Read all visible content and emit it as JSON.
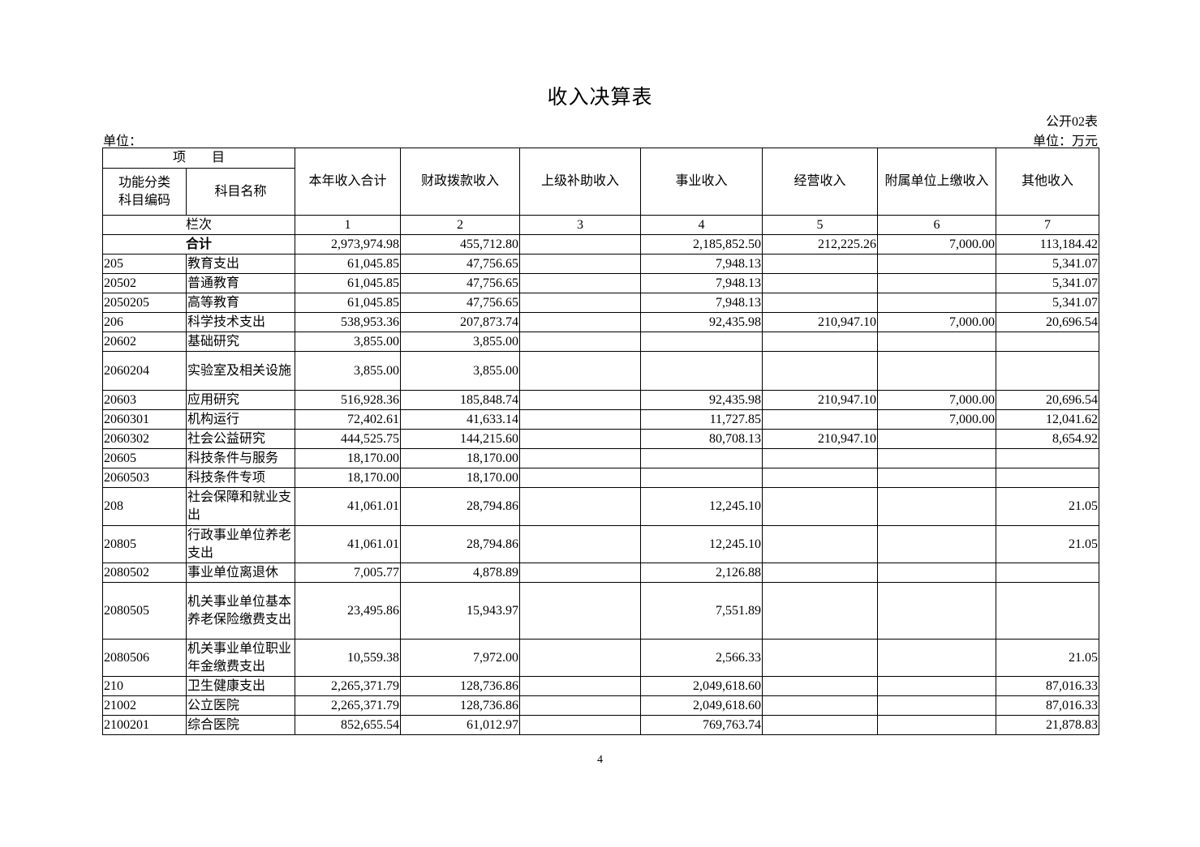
{
  "title": "收入决算表",
  "table_no": "公开02表",
  "unit_left": "单位：",
  "unit_right": "单位：万元",
  "header": {
    "item": "项　　目",
    "code": "功能分类科目编码",
    "name": "科目名称",
    "columns": [
      "本年收入合计",
      "财政拨款收入",
      "上级补助收入",
      "事业收入",
      "经营收入",
      "附属单位上缴收入",
      "其他收入"
    ],
    "row_index_label": "栏次",
    "row_index": [
      "1",
      "2",
      "3",
      "4",
      "5",
      "6",
      "7"
    ]
  },
  "total": {
    "label": "合计",
    "values": [
      "2,973,974.98",
      "455,712.80",
      "",
      "2,185,852.50",
      "212,225.26",
      "7,000.00",
      "113,184.42"
    ]
  },
  "rows": [
    {
      "code": "205",
      "name": "教育支出",
      "values": [
        "61,045.85",
        "47,756.65",
        "",
        "7,948.13",
        "",
        "",
        "5,341.07"
      ]
    },
    {
      "code": "20502",
      "name": "普通教育",
      "values": [
        "61,045.85",
        "47,756.65",
        "",
        "7,948.13",
        "",
        "",
        "5,341.07"
      ]
    },
    {
      "code": "2050205",
      "name": "高等教育",
      "values": [
        "61,045.85",
        "47,756.65",
        "",
        "7,948.13",
        "",
        "",
        "5,341.07"
      ]
    },
    {
      "code": "206",
      "name": "科学技术支出",
      "values": [
        "538,953.36",
        "207,873.74",
        "",
        "92,435.98",
        "210,947.10",
        "7,000.00",
        "20,696.54"
      ]
    },
    {
      "code": "20602",
      "name": "基础研究",
      "values": [
        "3,855.00",
        "3,855.00",
        "",
        "",
        "",
        "",
        ""
      ]
    },
    {
      "code": "2060204",
      "name": "实验室及相关设施",
      "values": [
        "3,855.00",
        "3,855.00",
        "",
        "",
        "",
        "",
        ""
      ]
    },
    {
      "code": "20603",
      "name": "应用研究",
      "values": [
        "516,928.36",
        "185,848.74",
        "",
        "92,435.98",
        "210,947.10",
        "7,000.00",
        "20,696.54"
      ]
    },
    {
      "code": "2060301",
      "name": "机构运行",
      "values": [
        "72,402.61",
        "41,633.14",
        "",
        "11,727.85",
        "",
        "7,000.00",
        "12,041.62"
      ]
    },
    {
      "code": "2060302",
      "name": "社会公益研究",
      "values": [
        "444,525.75",
        "144,215.60",
        "",
        "80,708.13",
        "210,947.10",
        "",
        "8,654.92"
      ]
    },
    {
      "code": "20605",
      "name": "科技条件与服务",
      "values": [
        "18,170.00",
        "18,170.00",
        "",
        "",
        "",
        "",
        ""
      ]
    },
    {
      "code": "2060503",
      "name": "科技条件专项",
      "values": [
        "18,170.00",
        "18,170.00",
        "",
        "",
        "",
        "",
        ""
      ]
    },
    {
      "code": "208",
      "name": "社会保障和就业支出",
      "values": [
        "41,061.01",
        "28,794.86",
        "",
        "12,245.10",
        "",
        "",
        "21.05"
      ]
    },
    {
      "code": "20805",
      "name": "行政事业单位养老支出",
      "values": [
        "41,061.01",
        "28,794.86",
        "",
        "12,245.10",
        "",
        "",
        "21.05"
      ]
    },
    {
      "code": "2080502",
      "name": "事业单位离退休",
      "values": [
        "7,005.77",
        "4,878.89",
        "",
        "2,126.88",
        "",
        "",
        ""
      ]
    },
    {
      "code": "2080505",
      "name": "机关事业单位基本养老保险缴费支出",
      "values": [
        "23,495.86",
        "15,943.97",
        "",
        "7,551.89",
        "",
        "",
        ""
      ]
    },
    {
      "code": "2080506",
      "name": "机关事业单位职业年金缴费支出",
      "values": [
        "10,559.38",
        "7,972.00",
        "",
        "2,566.33",
        "",
        "",
        "21.05"
      ]
    },
    {
      "code": "210",
      "name": "卫生健康支出",
      "values": [
        "2,265,371.79",
        "128,736.86",
        "",
        "2,049,618.60",
        "",
        "",
        "87,016.33"
      ]
    },
    {
      "code": "21002",
      "name": "公立医院",
      "values": [
        "2,265,371.79",
        "128,736.86",
        "",
        "2,049,618.60",
        "",
        "",
        "87,016.33"
      ]
    },
    {
      "code": "2100201",
      "name": "综合医院",
      "values": [
        "852,655.54",
        "61,012.97",
        "",
        "769,763.74",
        "",
        "",
        "21,878.83"
      ]
    }
  ],
  "page_number": "4"
}
